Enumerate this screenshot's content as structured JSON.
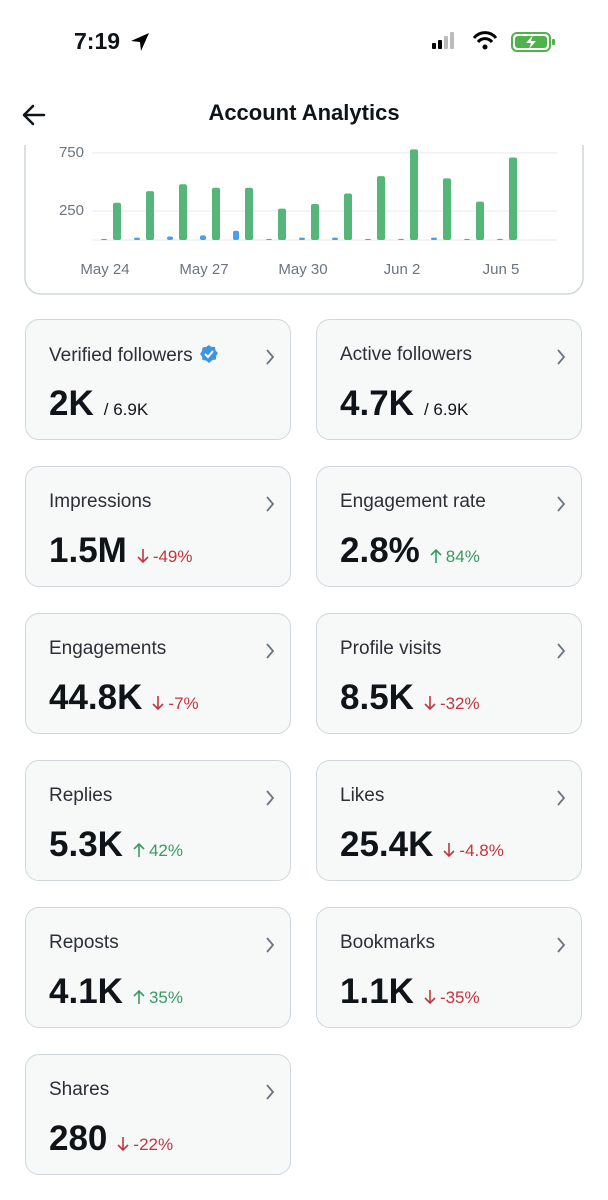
{
  "status_bar": {
    "time": "7:19"
  },
  "header": {
    "title": "Account Analytics"
  },
  "chart_data": {
    "type": "bar",
    "categories": [
      "May 24",
      null,
      null,
      "May 27",
      null,
      null,
      "May 30",
      null,
      null,
      "Jun 2",
      null,
      null,
      "Jun 5",
      null
    ],
    "series": [
      {
        "color": "#4a9fe8",
        "values": [
          10,
          20,
          30,
          40,
          80,
          10,
          20,
          20,
          10,
          10,
          20,
          10,
          10,
          0
        ]
      },
      {
        "color": "#56b67a",
        "values": [
          320,
          420,
          480,
          450,
          450,
          270,
          310,
          400,
          550,
          780,
          530,
          330,
          710,
          0
        ]
      }
    ],
    "ylim": [
      0,
      800
    ],
    "yticks": [
      250,
      750
    ],
    "grid": true
  },
  "cards": [
    {
      "label": "Verified followers",
      "value": "2K",
      "total": "/ 6.9K",
      "verified": true
    },
    {
      "label": "Active followers",
      "value": "4.7K",
      "total": "/ 6.9K"
    },
    {
      "label": "Impressions",
      "value": "1.5M",
      "change": "-49%"
    },
    {
      "label": "Engagement rate",
      "value": "2.8%",
      "change": "84%"
    },
    {
      "label": "Engagements",
      "value": "44.8K",
      "change": "-7%"
    },
    {
      "label": "Profile visits",
      "value": "8.5K",
      "change": "-32%"
    },
    {
      "label": "Replies",
      "value": "5.3K",
      "change": "42%"
    },
    {
      "label": "Likes",
      "value": "25.4K",
      "change": "-4.8%"
    },
    {
      "label": "Reposts",
      "value": "4.1K",
      "change": "35%"
    },
    {
      "label": "Bookmarks",
      "value": "1.1K",
      "change": "-35%"
    },
    {
      "label": "Shares",
      "value": "280",
      "change": "-22%"
    }
  ]
}
